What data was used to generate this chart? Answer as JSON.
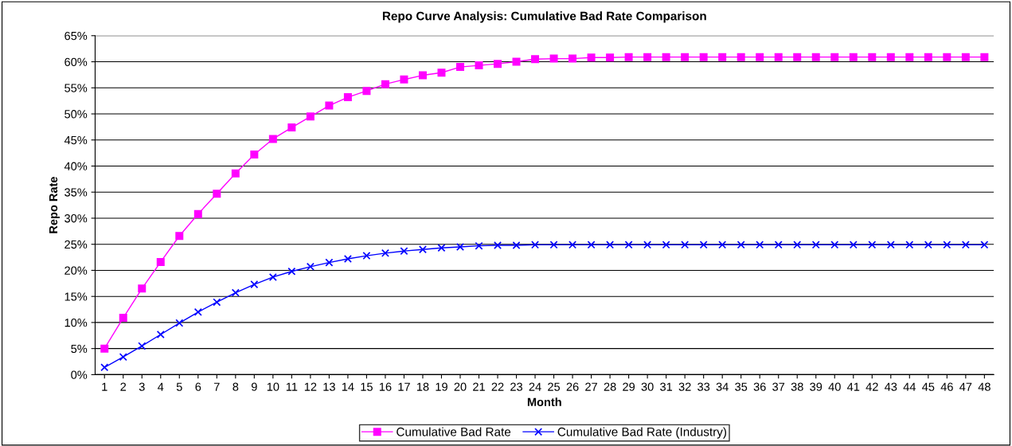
{
  "chart_data": {
    "type": "line",
    "title": "Repo Curve Analysis: Cumulative Bad Rate Comparison",
    "xlabel": "Month",
    "ylabel": "Repo Rate",
    "categories": [
      "1",
      "2",
      "3",
      "4",
      "5",
      "6",
      "7",
      "8",
      "9",
      "10",
      "11",
      "12",
      "13",
      "14",
      "15",
      "16",
      "17",
      "18",
      "19",
      "20",
      "21",
      "22",
      "23",
      "24",
      "25",
      "26",
      "27",
      "28",
      "29",
      "30",
      "31",
      "32",
      "33",
      "34",
      "35",
      "36",
      "37",
      "38",
      "39",
      "40",
      "41",
      "42",
      "43",
      "44",
      "45",
      "46",
      "47",
      "48"
    ],
    "series": [
      {
        "name": "Cumulative Bad Rate",
        "color": "#ff00ff",
        "marker": "square",
        "values": [
          5.0,
          10.9,
          16.5,
          21.6,
          26.6,
          30.8,
          34.7,
          38.6,
          42.2,
          45.2,
          47.4,
          49.5,
          51.6,
          53.2,
          54.4,
          55.7,
          56.6,
          57.4,
          57.9,
          59.0,
          59.3,
          59.6,
          60.0,
          60.5,
          60.6,
          60.6,
          60.8,
          60.8,
          60.9,
          60.9,
          60.9,
          60.9,
          60.9,
          60.9,
          60.9,
          60.9,
          60.9,
          60.9,
          60.9,
          60.9,
          60.9,
          60.9,
          60.9,
          60.9,
          60.9,
          60.9,
          60.9,
          60.9
        ]
      },
      {
        "name": "Cumulative Bad Rate (Industry)",
        "color": "#0000ff",
        "marker": "cross",
        "values": [
          1.4,
          3.4,
          5.5,
          7.7,
          9.9,
          12.0,
          13.9,
          15.7,
          17.3,
          18.7,
          19.8,
          20.7,
          21.5,
          22.2,
          22.8,
          23.3,
          23.7,
          24.0,
          24.3,
          24.5,
          24.7,
          24.8,
          24.8,
          24.9,
          24.9,
          24.9,
          24.9,
          24.9,
          24.9,
          24.9,
          24.9,
          24.9,
          24.9,
          24.9,
          24.9,
          24.9,
          24.9,
          24.9,
          24.9,
          24.9,
          24.9,
          24.9,
          24.9,
          24.9,
          24.9,
          24.9,
          24.9,
          24.9
        ]
      }
    ],
    "ylim": [
      0,
      65
    ],
    "yticks": [
      {
        "value": 0,
        "label": "0%"
      },
      {
        "value": 5,
        "label": "5%"
      },
      {
        "value": 10,
        "label": "10%"
      },
      {
        "value": 15,
        "label": "15%"
      },
      {
        "value": 20,
        "label": "20%"
      },
      {
        "value": 25,
        "label": "25%"
      },
      {
        "value": 30,
        "label": "30%"
      },
      {
        "value": 35,
        "label": "35%"
      },
      {
        "value": 40,
        "label": "40%"
      },
      {
        "value": 45,
        "label": "45%"
      },
      {
        "value": 50,
        "label": "50%"
      },
      {
        "value": 55,
        "label": "55%"
      },
      {
        "value": 60,
        "label": "60%"
      },
      {
        "value": 65,
        "label": "65%"
      }
    ],
    "grid": "y",
    "legend": "bottom",
    "line_style": "solid"
  }
}
